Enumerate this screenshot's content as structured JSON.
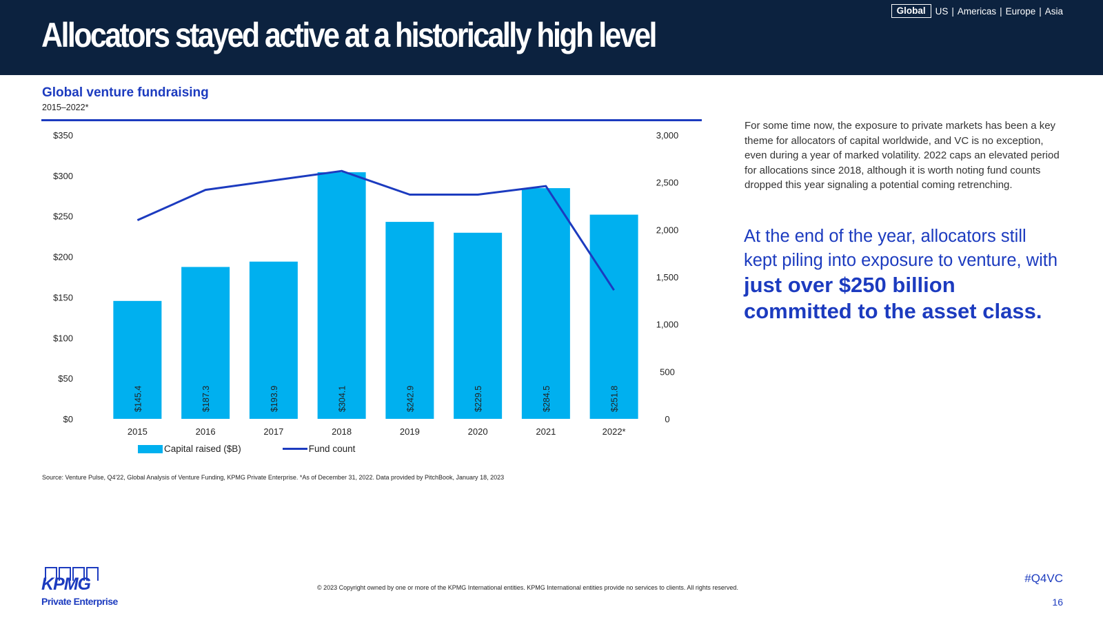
{
  "header": {
    "title": "Allocators stayed active at a historically high level",
    "regions": [
      {
        "label": "Global",
        "active": true
      },
      {
        "label": "US",
        "active": false
      },
      {
        "label": "Americas",
        "active": false
      },
      {
        "label": "Europe",
        "active": false
      },
      {
        "label": "Asia",
        "active": false
      }
    ],
    "separator": "|"
  },
  "chart": {
    "title": "Global venture fundraising",
    "subtitle": "2015–2022*"
  },
  "chart_data": {
    "type": "bar",
    "categories": [
      "2015",
      "2016",
      "2017",
      "2018",
      "2019",
      "2020",
      "2021",
      "2022*"
    ],
    "series": [
      {
        "name": "Capital raised ($B)",
        "type": "bar",
        "axis": "left",
        "color": "#00b0ef",
        "values": [
          145.4,
          187.3,
          193.9,
          304.1,
          242.9,
          229.5,
          284.5,
          251.8
        ],
        "labels": [
          "$145.4",
          "$187.3",
          "$193.9",
          "$304.1",
          "$242.9",
          "$229.5",
          "$284.5",
          "$251.8"
        ]
      },
      {
        "name": "Fund count",
        "type": "line",
        "axis": "right",
        "color": "#1c3bbf",
        "values": [
          2100,
          2420,
          2520,
          2620,
          2370,
          2370,
          2460,
          1360
        ]
      }
    ],
    "y_left": {
      "min": 0,
      "max": 350,
      "ticks": [
        0,
        50,
        100,
        150,
        200,
        250,
        300,
        350
      ],
      "tick_labels": [
        "$0",
        "$50",
        "$100",
        "$150",
        "$200",
        "$250",
        "$300",
        "$350"
      ]
    },
    "y_right": {
      "min": 0,
      "max": 3000,
      "ticks": [
        0,
        500,
        1000,
        1500,
        2000,
        2500,
        3000
      ],
      "tick_labels": [
        "0",
        "500",
        "1,000",
        "1,500",
        "2,000",
        "2,500",
        "3,000"
      ]
    },
    "grid": false,
    "legend_position": "bottom-left"
  },
  "source": "Source: Venture Pulse, Q4'22, Global Analysis of Venture Funding, KPMG Private Enterprise. *As of December 31, 2022. Data provided by PitchBook, January 18, 2023",
  "commentary": {
    "body": "For some time now, the exposure to private markets has been a key theme for allocators of capital worldwide, and VC is no exception, even during a year of marked volatility. 2022 caps an elevated period for allocations since 2018, although it is worth noting fund counts dropped this year signaling a potential coming retrenching.",
    "callout_plain": "At the end of the year, allocators still kept piling into exposure to venture, with ",
    "callout_strong": "just over $250 billion committed to the asset class."
  },
  "footer": {
    "logo_word": "KPMG",
    "logo_sub": "Private Enterprise",
    "copyright": "© 2023 Copyright owned by one or more of the KPMG International entities. KPMG International entities provide no services to clients. All rights reserved.",
    "hashtag": "#Q4VC",
    "page_number": "16"
  },
  "colors": {
    "header_bg": "#0c223f",
    "accent_blue": "#1c3bbf",
    "bar_cyan": "#00b0ef"
  }
}
